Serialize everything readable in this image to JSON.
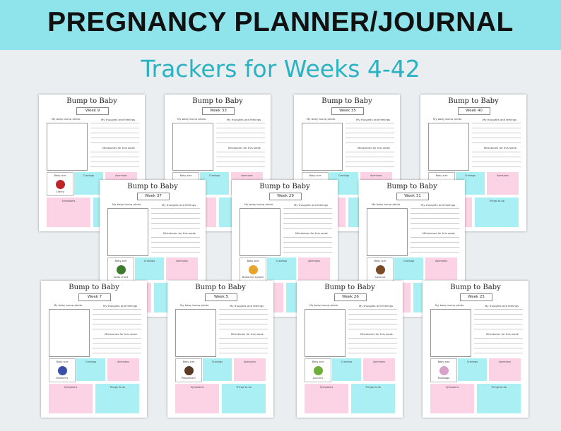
{
  "banner": {
    "title": "PREGNANCY PLANNER/JOURNAL",
    "subtitle": "Trackers for Weeks 4-42"
  },
  "labels": {
    "title": "Bump to Baby",
    "photo": "My baby bump photo",
    "thoughts": "My thoughts and feelings",
    "milestones": "Milestones for this week",
    "baby_size": "Baby size",
    "cravings": "Cravings",
    "aversions": "Aversions",
    "symptoms": "Symptoms",
    "todo": "Things to do"
  },
  "pages": [
    {
      "week": "Week 9",
      "fruit": "Cherry",
      "fruit_icon": "cherry-icon",
      "fruit_color": "#c0242b"
    },
    {
      "week": "Week 33",
      "fruit": "",
      "fruit_icon": "pineapple-icon",
      "fruit_color": "#3f8a3a"
    },
    {
      "week": "Week 35",
      "fruit": "",
      "fruit_icon": "melon-icon",
      "fruit_color": "#8fa84a"
    },
    {
      "week": "Week 40",
      "fruit": "",
      "fruit_icon": "watermelon-icon",
      "fruit_color": "#2f6b2f"
    },
    {
      "week": "Week 37",
      "fruit": "Swiss chard",
      "fruit_icon": "swiss-chard-icon",
      "fruit_color": "#3c7b2d"
    },
    {
      "week": "Week 29",
      "fruit": "Butternut squash",
      "fruit_icon": "squash-icon",
      "fruit_color": "#e6a52a"
    },
    {
      "week": "Week 31",
      "fruit": "Coconut",
      "fruit_icon": "coconut-icon",
      "fruit_color": "#7a4b26"
    },
    {
      "week": "Week 7",
      "fruit": "Blueberry",
      "fruit_icon": "blueberry-icon",
      "fruit_color": "#3a4fa8"
    },
    {
      "week": "Week 5",
      "fruit": "Peppercorn",
      "fruit_icon": "peppercorn-icon",
      "fruit_color": "#5a3a22"
    },
    {
      "week": "Week 26",
      "fruit": "Zucchini",
      "fruit_icon": "zucchini-icon",
      "fruit_color": "#6fae3a"
    },
    {
      "week": "Week 25",
      "fruit": "Rutabaga",
      "fruit_icon": "rutabaga-icon",
      "fruit_color": "#d9a0c8"
    }
  ]
}
